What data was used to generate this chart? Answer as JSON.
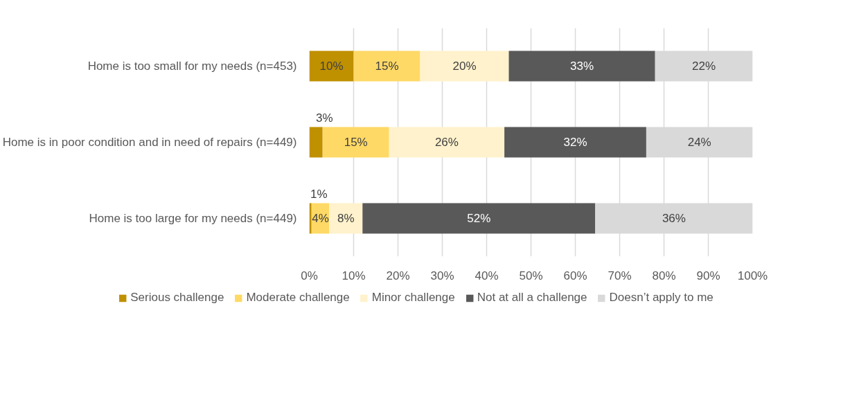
{
  "chart_data": {
    "type": "bar",
    "orientation": "horizontal",
    "stacked": true,
    "categories": [
      "Home is too small for my needs (n=453)",
      "Home is in poor condition and in need of repairs (n=449)",
      "Home is too large for my needs (n=449)"
    ],
    "series": [
      {
        "name": "Serious challenge",
        "color": "#bf9000",
        "values": [
          10,
          3,
          0.5
        ],
        "value_labels": [
          "10%",
          "3%",
          "1%"
        ]
      },
      {
        "name": "Moderate challenge",
        "color": "#ffd966",
        "values": [
          15,
          15,
          4
        ],
        "value_labels": [
          "15%",
          "15%",
          "4%"
        ]
      },
      {
        "name": "Minor challenge",
        "color": "#fff2cc",
        "values": [
          20,
          26,
          7.5
        ],
        "value_labels": [
          "20%",
          "26%",
          "8%"
        ]
      },
      {
        "name": "Not at all a challenge",
        "color": "#595959",
        "values": [
          33,
          32,
          52.5
        ],
        "value_labels": [
          "33%",
          "32%",
          "52%"
        ]
      },
      {
        "name": "Doesn’t apply to me",
        "color": "#d9d9d9",
        "values": [
          22,
          24,
          35.5
        ],
        "value_labels": [
          "22%",
          "24%",
          "36%"
        ]
      }
    ],
    "xlim": [
      0,
      100
    ],
    "xticks": [
      {
        "value": 0,
        "label": "0%"
      },
      {
        "value": 10,
        "label": "10%"
      },
      {
        "value": 20,
        "label": "20%"
      },
      {
        "value": 30,
        "label": "30%"
      },
      {
        "value": 40,
        "label": "40%"
      },
      {
        "value": 50,
        "label": "50%"
      },
      {
        "value": 60,
        "label": "60%"
      },
      {
        "value": 70,
        "label": "70%"
      },
      {
        "value": 80,
        "label": "80%"
      },
      {
        "value": 90,
        "label": "90%"
      },
      {
        "value": 100,
        "label": "100%"
      }
    ],
    "grid": "x",
    "legend": "bottom"
  }
}
